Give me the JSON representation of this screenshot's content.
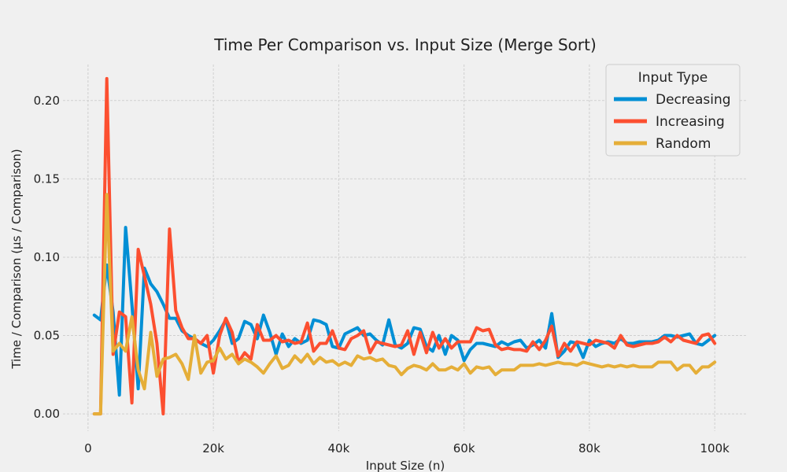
{
  "chart_data": {
    "type": "line",
    "title": "Time Per Comparison vs. Input Size (Merge Sort)",
    "xlabel": "Input Size (n)",
    "ylabel": "Time / Comparison (μs / Comparison)",
    "xlim": [
      -4000,
      105000
    ],
    "ylim": [
      -0.011,
      0.223
    ],
    "x_ticks": [
      0,
      20000,
      40000,
      60000,
      80000,
      100000
    ],
    "x_tick_labels": [
      "0",
      "20k",
      "40k",
      "60k",
      "80k",
      "100k"
    ],
    "y_ticks": [
      0.0,
      0.05,
      0.1,
      0.15,
      0.2
    ],
    "y_tick_labels": [
      "0.00",
      "0.05",
      "0.10",
      "0.15",
      "0.20"
    ],
    "grid": true,
    "legend": {
      "title": "Input Type",
      "placement": "top-right"
    },
    "x": [
      1000,
      2000,
      3000,
      4000,
      5000,
      6000,
      7000,
      8000,
      9000,
      10000,
      11000,
      12000,
      13000,
      14000,
      15000,
      16000,
      17000,
      18000,
      19000,
      20000,
      21000,
      22000,
      23000,
      24000,
      25000,
      26000,
      27000,
      28000,
      29000,
      30000,
      31000,
      32000,
      33000,
      34000,
      35000,
      36000,
      37000,
      38000,
      39000,
      40000,
      41000,
      42000,
      43000,
      44000,
      45000,
      46000,
      47000,
      48000,
      49000,
      50000,
      51000,
      52000,
      53000,
      54000,
      55000,
      56000,
      57000,
      58000,
      59000,
      60000,
      61000,
      62000,
      63000,
      64000,
      65000,
      66000,
      67000,
      68000,
      69000,
      70000,
      71000,
      72000,
      73000,
      74000,
      75000,
      76000,
      77000,
      78000,
      79000,
      80000,
      81000,
      82000,
      83000,
      84000,
      85000,
      86000,
      87000,
      88000,
      89000,
      90000,
      91000,
      92000,
      93000,
      94000,
      95000,
      96000,
      97000,
      98000,
      99000,
      100000
    ],
    "series": [
      {
        "name": "Decreasing",
        "color": "#008fd5",
        "values": [
          0.063,
          0.06,
          0.095,
          0.065,
          0.012,
          0.119,
          0.07,
          0.016,
          0.093,
          0.083,
          0.078,
          0.07,
          0.061,
          0.061,
          0.053,
          0.05,
          0.048,
          0.045,
          0.043,
          0.047,
          0.053,
          0.06,
          0.045,
          0.048,
          0.059,
          0.057,
          0.048,
          0.063,
          0.052,
          0.038,
          0.051,
          0.043,
          0.048,
          0.045,
          0.047,
          0.06,
          0.059,
          0.057,
          0.043,
          0.042,
          0.051,
          0.053,
          0.055,
          0.05,
          0.051,
          0.047,
          0.044,
          0.06,
          0.044,
          0.042,
          0.045,
          0.055,
          0.054,
          0.043,
          0.04,
          0.05,
          0.038,
          0.05,
          0.047,
          0.034,
          0.041,
          0.045,
          0.045,
          0.044,
          0.043,
          0.046,
          0.044,
          0.046,
          0.047,
          0.042,
          0.044,
          0.047,
          0.042,
          0.064,
          0.036,
          0.04,
          0.046,
          0.045,
          0.036,
          0.047,
          0.043,
          0.045,
          0.046,
          0.045,
          0.048,
          0.045,
          0.045,
          0.046,
          0.046,
          0.046,
          0.047,
          0.05,
          0.05,
          0.049,
          0.05,
          0.051,
          0.045,
          0.044,
          0.047,
          0.05
        ]
      },
      {
        "name": "Increasing",
        "color": "#fc4f30",
        "values": [
          0.0,
          0.0,
          0.214,
          0.038,
          0.065,
          0.062,
          0.007,
          0.105,
          0.088,
          0.07,
          0.045,
          0.0,
          0.118,
          0.066,
          0.055,
          0.048,
          0.048,
          0.045,
          0.05,
          0.026,
          0.05,
          0.061,
          0.052,
          0.033,
          0.039,
          0.035,
          0.057,
          0.047,
          0.047,
          0.05,
          0.046,
          0.047,
          0.045,
          0.046,
          0.058,
          0.04,
          0.045,
          0.045,
          0.053,
          0.042,
          0.041,
          0.048,
          0.05,
          0.053,
          0.039,
          0.046,
          0.045,
          0.044,
          0.043,
          0.044,
          0.053,
          0.038,
          0.052,
          0.039,
          0.052,
          0.042,
          0.048,
          0.042,
          0.046,
          0.046,
          0.046,
          0.055,
          0.053,
          0.054,
          0.044,
          0.041,
          0.042,
          0.041,
          0.041,
          0.04,
          0.046,
          0.041,
          0.047,
          0.056,
          0.037,
          0.045,
          0.04,
          0.046,
          0.045,
          0.044,
          0.047,
          0.046,
          0.045,
          0.042,
          0.05,
          0.044,
          0.043,
          0.044,
          0.045,
          0.045,
          0.046,
          0.049,
          0.046,
          0.05,
          0.047,
          0.046,
          0.045,
          0.05,
          0.051,
          0.045
        ]
      },
      {
        "name": "Random",
        "color": "#e5ae38",
        "values": [
          0.0,
          0.0,
          0.14,
          0.04,
          0.045,
          0.04,
          0.062,
          0.028,
          0.016,
          0.052,
          0.024,
          0.035,
          0.036,
          0.038,
          0.032,
          0.022,
          0.05,
          0.026,
          0.033,
          0.034,
          0.042,
          0.035,
          0.038,
          0.032,
          0.035,
          0.033,
          0.03,
          0.026,
          0.032,
          0.037,
          0.029,
          0.031,
          0.037,
          0.033,
          0.038,
          0.032,
          0.036,
          0.033,
          0.034,
          0.031,
          0.033,
          0.031,
          0.037,
          0.035,
          0.036,
          0.034,
          0.035,
          0.031,
          0.03,
          0.025,
          0.029,
          0.031,
          0.03,
          0.028,
          0.032,
          0.028,
          0.028,
          0.03,
          0.028,
          0.032,
          0.026,
          0.03,
          0.029,
          0.03,
          0.025,
          0.028,
          0.028,
          0.028,
          0.031,
          0.031,
          0.031,
          0.032,
          0.031,
          0.032,
          0.033,
          0.032,
          0.032,
          0.031,
          0.033,
          0.032,
          0.031,
          0.03,
          0.031,
          0.03,
          0.031,
          0.03,
          0.031,
          0.03,
          0.03,
          0.03,
          0.033,
          0.033,
          0.033,
          0.028,
          0.031,
          0.031,
          0.026,
          0.03,
          0.03,
          0.033
        ]
      }
    ]
  }
}
